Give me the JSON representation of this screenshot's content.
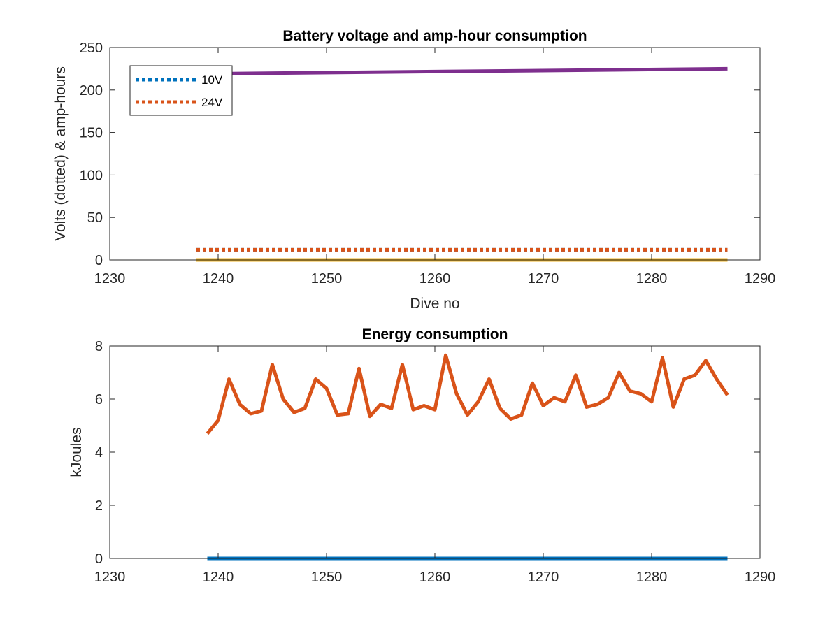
{
  "chart_data": [
    {
      "type": "line",
      "title": "Battery voltage and amp-hour consumption",
      "xlabel": "Dive no",
      "ylabel": "Volts (dotted) & amp-hours",
      "xlim": [
        1230,
        1290
      ],
      "ylim": [
        0,
        250
      ],
      "xticks": [
        1230,
        1240,
        1250,
        1260,
        1270,
        1280,
        1290
      ],
      "yticks": [
        0,
        50,
        100,
        150,
        200,
        250
      ],
      "legend": {
        "placement": "top-left",
        "entries": [
          "10V",
          "24V"
        ]
      },
      "grid": false,
      "series": [
        {
          "name": "10V",
          "color": "#0072BD",
          "style": "dotted",
          "x": [
            1238,
            1287
          ],
          "y": [
            12,
            12
          ]
        },
        {
          "name": "24V",
          "color": "#D95319",
          "style": "dotted",
          "x": [
            1238,
            1287
          ],
          "y": [
            12,
            12
          ]
        },
        {
          "color": "#EDB120",
          "style": "solid",
          "x": [
            1238,
            1287
          ],
          "y": [
            0,
            0
          ]
        },
        {
          "color": "#7E2F8E",
          "style": "solid",
          "x": [
            1238,
            1287
          ],
          "y": [
            219,
            225
          ]
        }
      ]
    },
    {
      "type": "line",
      "title": "Energy consumption",
      "xlabel": "",
      "ylabel": "kJoules",
      "xlim": [
        1230,
        1290
      ],
      "ylim": [
        0,
        8
      ],
      "xticks": [
        1230,
        1240,
        1250,
        1260,
        1270,
        1280,
        1290
      ],
      "yticks": [
        0,
        2,
        4,
        6,
        8
      ],
      "grid": false,
      "series": [
        {
          "color": "#D95319",
          "style": "solid",
          "x": [
            1239,
            1240,
            1241,
            1242,
            1243,
            1244,
            1245,
            1246,
            1247,
            1248,
            1249,
            1250,
            1251,
            1252,
            1253,
            1254,
            1255,
            1256,
            1257,
            1258,
            1259,
            1260,
            1261,
            1262,
            1263,
            1264,
            1265,
            1266,
            1267,
            1268,
            1269,
            1270,
            1271,
            1272,
            1273,
            1274,
            1275,
            1276,
            1277,
            1278,
            1279,
            1280,
            1281,
            1282,
            1283,
            1284,
            1285,
            1286,
            1287
          ],
          "y": [
            4.7,
            5.2,
            6.75,
            5.8,
            5.45,
            5.55,
            7.3,
            6.0,
            5.5,
            5.65,
            6.75,
            6.4,
            5.4,
            5.45,
            7.15,
            5.35,
            5.8,
            5.65,
            7.3,
            5.6,
            5.75,
            5.6,
            7.65,
            6.2,
            5.4,
            5.9,
            6.75,
            5.65,
            5.25,
            5.4,
            6.6,
            5.75,
            6.05,
            5.9,
            6.9,
            5.7,
            5.8,
            6.05,
            7.0,
            6.3,
            6.2,
            5.9,
            7.55,
            5.7,
            6.75,
            6.9,
            7.45,
            6.75,
            6.15
          ]
        },
        {
          "color": "#0072BD",
          "style": "solid",
          "x": [
            1239,
            1287
          ],
          "y": [
            0,
            0
          ]
        }
      ]
    }
  ]
}
